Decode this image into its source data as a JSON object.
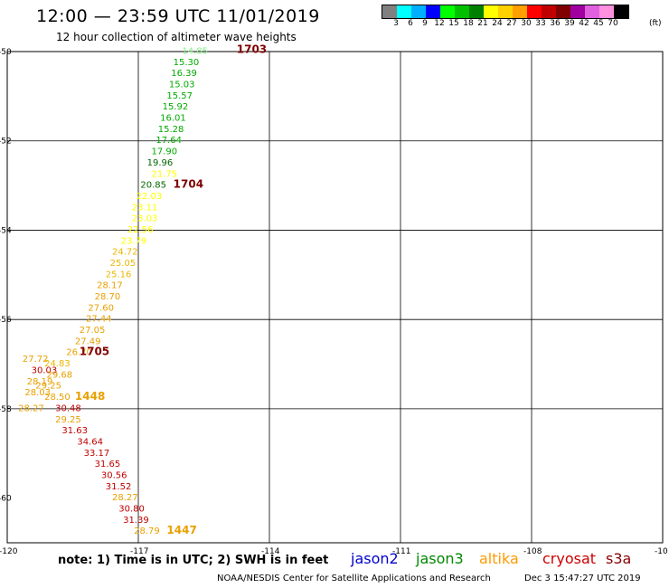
{
  "header": {
    "title": "12:00 — 23:59 UTC 11/01/2019",
    "subtitle": "12 hour collection of altimeter wave heights"
  },
  "legend": {
    "colors": [
      "#808080",
      "#00ffff",
      "#00b0ff",
      "#0000ff",
      "#00ff00",
      "#00c000",
      "#008000",
      "#ffff00",
      "#ffd000",
      "#ffa000",
      "#ff0000",
      "#c00000",
      "#800000",
      "#a000a0",
      "#e060e0",
      "#ff90e0",
      "#000000"
    ],
    "labels": [
      "3",
      "6",
      "9",
      "12",
      "15",
      "18",
      "21",
      "24",
      "27",
      "30",
      "33",
      "36",
      "39",
      "42",
      "45",
      "70"
    ],
    "unit": "(ft)"
  },
  "map": {
    "lon_labels": [
      "-120",
      "-117",
      "-114",
      "-111",
      "-108",
      "-10"
    ],
    "lat_labels": [
      "-50",
      "-52",
      "-54",
      "-56",
      "-58",
      "-60"
    ]
  },
  "track_labels": [
    {
      "text": "14.85",
      "lon": -116.0,
      "lat": -49.97,
      "color": "#88ee88"
    },
    {
      "text": "1703",
      "lon": -114.75,
      "lat": -49.95,
      "color": "#800000",
      "bold": true
    },
    {
      "text": "15.30",
      "lon": -116.2,
      "lat": -50.22,
      "color": "#00aa00"
    },
    {
      "text": "16.39",
      "lon": -116.25,
      "lat": -50.47,
      "color": "#00aa00"
    },
    {
      "text": "15.03",
      "lon": -116.3,
      "lat": -50.72,
      "color": "#00aa00"
    },
    {
      "text": "15.57",
      "lon": -116.35,
      "lat": -50.97,
      "color": "#00aa00"
    },
    {
      "text": "15.92",
      "lon": -116.45,
      "lat": -51.22,
      "color": "#00aa00"
    },
    {
      "text": "16.01",
      "lon": -116.5,
      "lat": -51.47,
      "color": "#00aa00"
    },
    {
      "text": "15.28",
      "lon": -116.55,
      "lat": -51.72,
      "color": "#00aa00"
    },
    {
      "text": "17.64",
      "lon": -116.6,
      "lat": -51.97,
      "color": "#00aa00"
    },
    {
      "text": "17.90",
      "lon": -116.7,
      "lat": -52.22,
      "color": "#00aa00"
    },
    {
      "text": "19.96",
      "lon": -116.8,
      "lat": -52.47,
      "color": "#006600"
    },
    {
      "text": "21.75",
      "lon": -116.7,
      "lat": -52.72,
      "color": "#ffff00"
    },
    {
      "text": "20.85",
      "lon": -116.95,
      "lat": -52.97,
      "color": "#006600"
    },
    {
      "text": "1704",
      "lon": -116.2,
      "lat": -52.97,
      "color": "#800000",
      "bold": true
    },
    {
      "text": "22.03",
      "lon": -117.05,
      "lat": -53.22,
      "color": "#ffff00"
    },
    {
      "text": "23.11",
      "lon": -117.15,
      "lat": -53.47,
      "color": "#ffff00"
    },
    {
      "text": "23.03",
      "lon": -117.15,
      "lat": -53.72,
      "color": "#ffff00"
    },
    {
      "text": "22.56",
      "lon": -117.25,
      "lat": -53.97,
      "color": "#ffff00"
    },
    {
      "text": "23.79",
      "lon": -117.4,
      "lat": -54.22,
      "color": "#ffff00"
    },
    {
      "text": "24.72",
      "lon": -117.6,
      "lat": -54.47,
      "color": "#e8b800"
    },
    {
      "text": "25.05",
      "lon": -117.65,
      "lat": -54.72,
      "color": "#e8b800"
    },
    {
      "text": "25.16",
      "lon": -117.75,
      "lat": -54.97,
      "color": "#e8b800"
    },
    {
      "text": "28.17",
      "lon": -117.95,
      "lat": -55.22,
      "color": "#e8a000"
    },
    {
      "text": "28.70",
      "lon": -118.0,
      "lat": -55.47,
      "color": "#e8a000"
    },
    {
      "text": "27.60",
      "lon": -118.15,
      "lat": -55.72,
      "color": "#e8a000"
    },
    {
      "text": "27.44",
      "lon": -118.2,
      "lat": -55.97,
      "color": "#e8a000"
    },
    {
      "text": "27.05",
      "lon": -118.35,
      "lat": -56.22,
      "color": "#e8a000"
    },
    {
      "text": "27.49",
      "lon": -118.45,
      "lat": -56.47,
      "color": "#e8a000"
    },
    {
      "text": "26.70",
      "lon": -118.65,
      "lat": -56.72,
      "color": "#e8a000"
    },
    {
      "text": "1705",
      "lon": -118.35,
      "lat": -56.72,
      "color": "#800000",
      "bold": true
    },
    {
      "text": "27.72",
      "lon": -119.65,
      "lat": -56.87,
      "color": "#e8a000"
    },
    {
      "text": "24.83",
      "lon": -119.15,
      "lat": -56.97,
      "color": "#e8b800"
    },
    {
      "text": "30.03",
      "lon": -119.45,
      "lat": -57.12,
      "color": "#c00000"
    },
    {
      "text": "29.68",
      "lon": -119.1,
      "lat": -57.22,
      "color": "#e8a000"
    },
    {
      "text": "28.19",
      "lon": -119.55,
      "lat": -57.37,
      "color": "#e8a000"
    },
    {
      "text": "29.25",
      "lon": -119.35,
      "lat": -57.47,
      "color": "#e8a000"
    },
    {
      "text": "28.03",
      "lon": -119.6,
      "lat": -57.62,
      "color": "#e8a000"
    },
    {
      "text": "28.50",
      "lon": -119.15,
      "lat": -57.72,
      "color": "#e8a000"
    },
    {
      "text": "1448",
      "lon": -118.45,
      "lat": -57.72,
      "color": "#e8a000",
      "bold": true
    },
    {
      "text": "28.27",
      "lon": -119.75,
      "lat": -57.97,
      "color": "#e8a000"
    },
    {
      "text": "30.48",
      "lon": -118.9,
      "lat": -57.97,
      "color": "#c00000"
    },
    {
      "text": "29.25",
      "lon": -118.9,
      "lat": -58.22,
      "color": "#e8a000"
    },
    {
      "text": "31.63",
      "lon": -118.75,
      "lat": -58.47,
      "color": "#c00000"
    },
    {
      "text": "34.64",
      "lon": -118.4,
      "lat": -58.72,
      "color": "#c00000"
    },
    {
      "text": "33.17",
      "lon": -118.25,
      "lat": -58.97,
      "color": "#c00000"
    },
    {
      "text": "31.65",
      "lon": -118.0,
      "lat": -59.22,
      "color": "#c00000"
    },
    {
      "text": "30.56",
      "lon": -117.85,
      "lat": -59.47,
      "color": "#c00000"
    },
    {
      "text": "31.52",
      "lon": -117.75,
      "lat": -59.72,
      "color": "#c00000"
    },
    {
      "text": "28.27",
      "lon": -117.6,
      "lat": -59.97,
      "color": "#e8a000"
    },
    {
      "text": "30.80",
      "lon": -117.45,
      "lat": -60.22,
      "color": "#c00000"
    },
    {
      "text": "31.39",
      "lon": -117.35,
      "lat": -60.47,
      "color": "#c00000"
    },
    {
      "text": "28.79",
      "lon": -117.1,
      "lat": -60.72,
      "color": "#e8a000"
    },
    {
      "text": "1447",
      "lon": -116.35,
      "lat": -60.72,
      "color": "#e8a000",
      "bold": true
    }
  ],
  "footer": {
    "note": "note:  1) Time is in UTC;  2) SWH is in feet",
    "missions": [
      {
        "name": "jason2",
        "color": "#0000cc"
      },
      {
        "name": "jason3",
        "color": "#008800"
      },
      {
        "name": "altika",
        "color": "#ff9900"
      },
      {
        "name": "cryosat",
        "color": "#cc0000"
      },
      {
        "name": "s3a",
        "color": "#880000"
      }
    ],
    "credit": "NOAA/NESDIS Center for Satellite Applications and Research",
    "timestamp": "Dec  3 15:47:27 UTC 2019"
  }
}
